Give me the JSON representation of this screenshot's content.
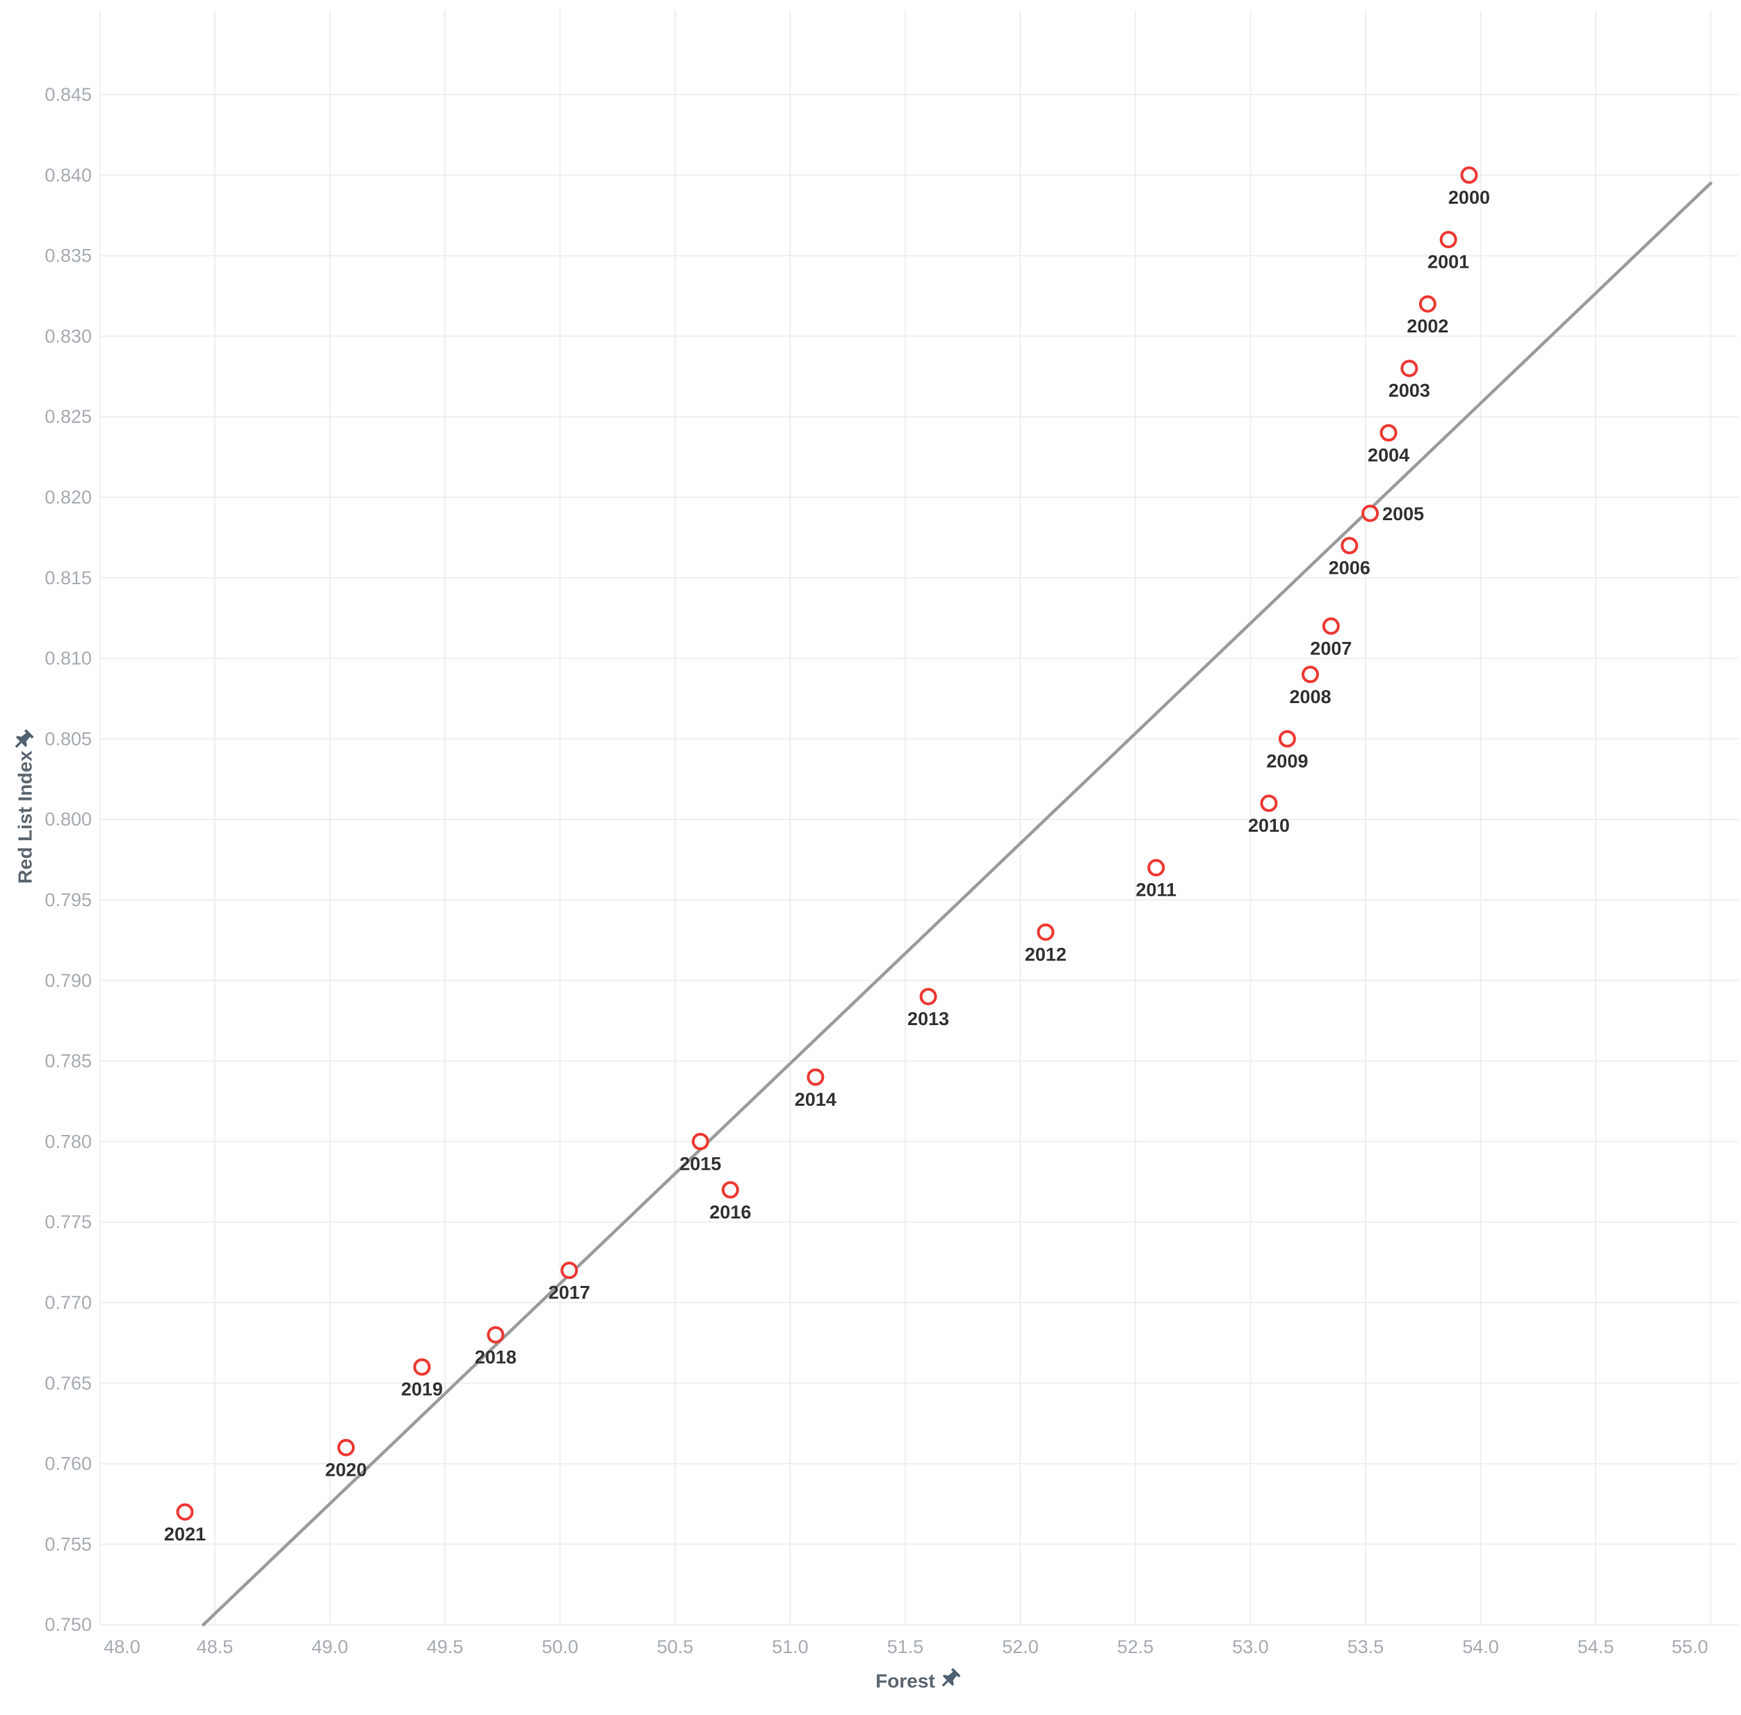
{
  "page": {
    "background": "#ffffff"
  },
  "chart_data": {
    "type": "scatter",
    "title": "",
    "xlabel": "Forest",
    "ylabel": "Red List Index",
    "x_axis": {
      "range": [
        48.0,
        55.0
      ],
      "ticks": [
        48.0,
        48.5,
        49.0,
        49.5,
        50.0,
        50.5,
        51.0,
        51.5,
        52.0,
        52.5,
        53.0,
        53.5,
        54.0,
        54.5,
        55.0
      ],
      "tick_decimals": 1,
      "grid": true,
      "pinned": true
    },
    "y_axis": {
      "range": [
        0.75,
        0.845
      ],
      "ticks": [
        0.75,
        0.755,
        0.76,
        0.765,
        0.77,
        0.775,
        0.78,
        0.785,
        0.79,
        0.795,
        0.8,
        0.805,
        0.81,
        0.815,
        0.82,
        0.825,
        0.83,
        0.835,
        0.84,
        0.845
      ],
      "tick_decimals": 3,
      "grid": true,
      "pinned": true
    },
    "marker": {
      "shape": "open-circle",
      "color": "#ee3933"
    },
    "trend_line": {
      "color": "#9b9b9b",
      "x1": 48.45,
      "y1": 0.75,
      "x2": 55.0,
      "y2": 0.8395
    },
    "points": [
      {
        "year": "2000",
        "x": 53.95,
        "y": 0.84,
        "label_position": "bottom"
      },
      {
        "year": "2001",
        "x": 53.86,
        "y": 0.836,
        "label_position": "bottom"
      },
      {
        "year": "2002",
        "x": 53.77,
        "y": 0.832,
        "label_position": "bottom"
      },
      {
        "year": "2003",
        "x": 53.69,
        "y": 0.828,
        "label_position": "bottom"
      },
      {
        "year": "2004",
        "x": 53.6,
        "y": 0.824,
        "label_position": "bottom"
      },
      {
        "year": "2005",
        "x": 53.52,
        "y": 0.819,
        "label_position": "right"
      },
      {
        "year": "2006",
        "x": 53.43,
        "y": 0.817,
        "label_position": "bottom"
      },
      {
        "year": "2007",
        "x": 53.35,
        "y": 0.812,
        "label_position": "bottom"
      },
      {
        "year": "2008",
        "x": 53.26,
        "y": 0.809,
        "label_position": "bottom"
      },
      {
        "year": "2009",
        "x": 53.16,
        "y": 0.805,
        "label_position": "bottom"
      },
      {
        "year": "2010",
        "x": 53.08,
        "y": 0.801,
        "label_position": "bottom"
      },
      {
        "year": "2011",
        "x": 52.59,
        "y": 0.797,
        "label_position": "bottom"
      },
      {
        "year": "2012",
        "x": 52.11,
        "y": 0.793,
        "label_position": "bottom"
      },
      {
        "year": "2013",
        "x": 51.6,
        "y": 0.789,
        "label_position": "bottom"
      },
      {
        "year": "2014",
        "x": 51.11,
        "y": 0.784,
        "label_position": "bottom"
      },
      {
        "year": "2015",
        "x": 50.61,
        "y": 0.78,
        "label_position": "bottom"
      },
      {
        "year": "2016",
        "x": 50.74,
        "y": 0.777,
        "label_position": "bottom"
      },
      {
        "year": "2017",
        "x": 50.04,
        "y": 0.772,
        "label_position": "bottom"
      },
      {
        "year": "2018",
        "x": 49.72,
        "y": 0.768,
        "label_position": "bottom"
      },
      {
        "year": "2019",
        "x": 49.4,
        "y": 0.766,
        "label_position": "bottom"
      },
      {
        "year": "2020",
        "x": 49.07,
        "y": 0.761,
        "label_position": "bottom"
      },
      {
        "year": "2021",
        "x": 48.37,
        "y": 0.757,
        "label_position": "bottom"
      }
    ],
    "colors": {
      "grid": "#efefef",
      "tick_label": "#a6acb2",
      "year_label": "#333333",
      "axis_title": "#5c666f",
      "marker": "#ee3933",
      "trend": "#9b9b9b",
      "pin": "#4e6170"
    },
    "legend": {
      "visible": false
    }
  }
}
